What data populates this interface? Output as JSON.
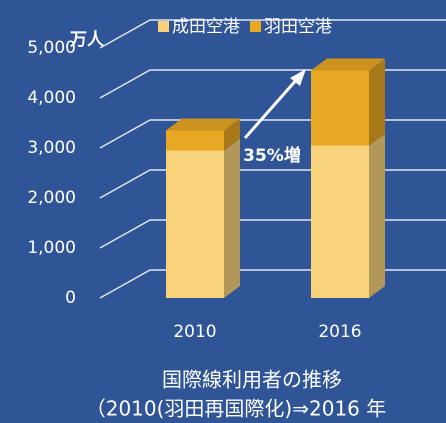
{
  "chart_data": {
    "type": "bar",
    "stacked": true,
    "three_d": true,
    "title": "国際線利用者の推移",
    "subtitle": "（2010(羽田再国際化)⇒2016 年",
    "y_axis_label": "万人",
    "annotation": "35%増",
    "categories": [
      "2010",
      "2016"
    ],
    "series": [
      {
        "name": "成田空港",
        "color": "#f9d27c",
        "values": [
          2950,
          3050
        ]
      },
      {
        "name": "羽田空港",
        "color": "#e8a823",
        "values": [
          400,
          1500
        ]
      }
    ],
    "ylim": [
      0,
      5000
    ],
    "yticks": [
      0,
      {
        "value": 1000,
        "label": "1,000"
      },
      {
        "value": 2000,
        "label": "2,000"
      },
      {
        "value": 3000,
        "label": "3,000"
      },
      {
        "value": 4000,
        "label": "4,000"
      },
      {
        "value": 5000,
        "label": "5,000"
      }
    ],
    "grid": true,
    "legend": "top"
  }
}
